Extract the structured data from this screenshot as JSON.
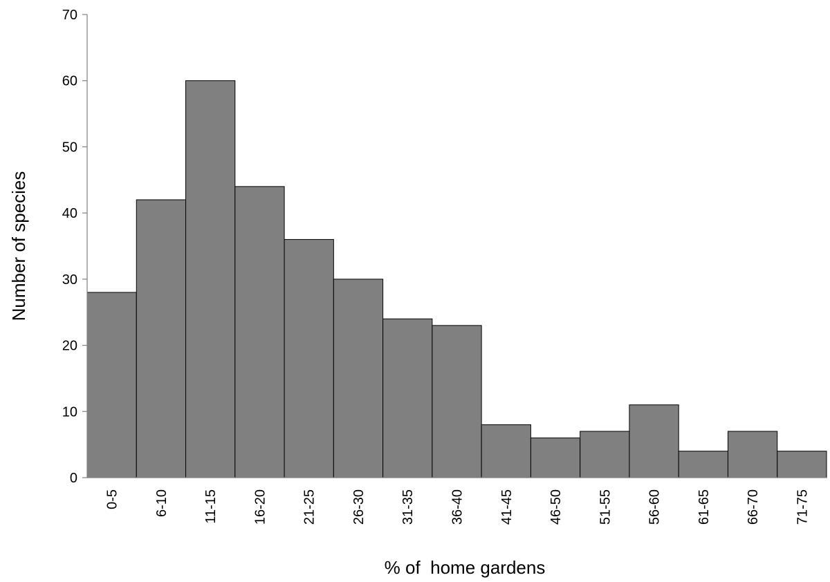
{
  "chart_data": {
    "type": "bar",
    "title": "",
    "xlabel": "% of  home gardens",
    "ylabel": "Number of species",
    "categories": [
      "0-5",
      "6-10",
      "11-15",
      "16-20",
      "21-25",
      "26-30",
      "31-35",
      "36-40",
      "41-45",
      "46-50",
      "51-55",
      "56-60",
      "61-65",
      "66-70",
      "71-75"
    ],
    "values": [
      28,
      42,
      60,
      44,
      36,
      30,
      24,
      23,
      8,
      6,
      7,
      11,
      4,
      7,
      4
    ],
    "ylim": [
      0,
      70
    ],
    "yticks": [
      0,
      10,
      20,
      30,
      40,
      50,
      60,
      70
    ],
    "grid": false,
    "legend": "none",
    "bar_color": "#808080",
    "edge_color": "#000000",
    "bar_gap": 0
  }
}
